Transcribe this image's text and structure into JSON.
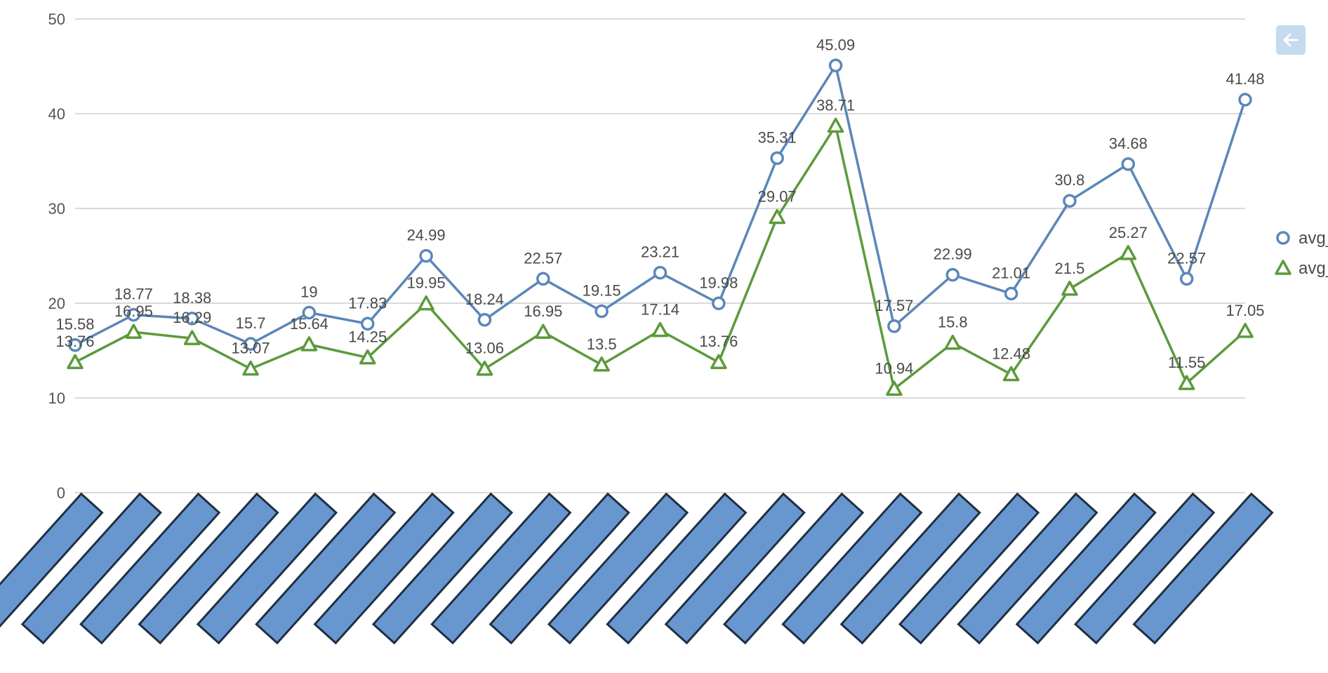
{
  "chart_data": {
    "type": "line",
    "title": "",
    "xlabel": "",
    "ylabel": "",
    "ylim": [
      0,
      50
    ],
    "yticks": [
      0,
      10,
      20,
      30,
      40,
      50
    ],
    "grid": true,
    "legend_position": "right",
    "point_count": 21,
    "series": [
      {
        "name": "avg_",
        "marker": "circle",
        "color": "#5b87b8",
        "values": [
          15.58,
          18.77,
          18.38,
          15.7,
          19,
          17.83,
          24.99,
          18.24,
          22.57,
          19.15,
          23.21,
          19.98,
          35.31,
          45.09,
          17.57,
          22.99,
          21.01,
          30.8,
          34.68,
          22.57,
          41.48
        ]
      },
      {
        "name": "avg_",
        "marker": "triangle",
        "color": "#5c9a3c",
        "values": [
          13.76,
          16.95,
          16.29,
          13.07,
          15.64,
          14.25,
          19.95,
          13.06,
          16.95,
          13.5,
          17.14,
          13.76,
          29.07,
          38.71,
          10.94,
          15.8,
          12.48,
          21.5,
          25.27,
          11.55,
          17.05
        ]
      }
    ]
  },
  "ui": {
    "back_icon": "arrow-left-icon",
    "axis_label_bar_color": "#6897d0",
    "grid_color": "#d9d9d9"
  }
}
